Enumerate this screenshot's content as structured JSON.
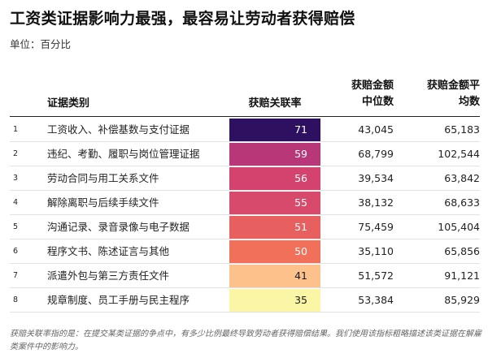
{
  "title": "工资类证据影响力最强，最容易让劳动者获得赔偿",
  "subtitle": "单位：百分比",
  "headers": {
    "category": "证据类别",
    "rate": "获赔关联率",
    "median_line1": "获赔金额",
    "median_line2": "中位数",
    "mean_line1": "获赔金额平",
    "mean_line2": "均数"
  },
  "note": "获赔关联率指的是：在提交某类证据的争点中，有多少比例最终导致劳动者获得赔偿结果。我们使用该指标粗略描述该类证据在解雇类案件中的影响力。",
  "colors": {
    "rate_cells": [
      "#2d1160",
      "#b73779",
      "#d3436e",
      "#d84a6b",
      "#e75f5f",
      "#f0705a",
      "#fdc28c",
      "#fbf5a6"
    ],
    "rate_text": [
      "#ffffff",
      "#ffffff",
      "#ffffff",
      "#ffffff",
      "#ffffff",
      "#ffffff",
      "#1a1a1a",
      "#1a1a1a"
    ]
  },
  "chart_data": {
    "type": "table",
    "columns": [
      "证据类别",
      "获赔关联率",
      "获赔金额中位数",
      "获赔金额平均数"
    ],
    "rows": [
      {
        "rank": "1",
        "category": "工资收入、补偿基数与支付证据",
        "rate": 71,
        "median": "43,045",
        "mean": "65,183"
      },
      {
        "rank": "2",
        "category": "违纪、考勤、履职与岗位管理证据",
        "rate": 59,
        "median": "68,799",
        "mean": "102,544"
      },
      {
        "rank": "3",
        "category": "劳动合同与用工关系文件",
        "rate": 56,
        "median": "39,534",
        "mean": "63,842"
      },
      {
        "rank": "4",
        "category": "解除离职与后续手续文件",
        "rate": 55,
        "median": "38,132",
        "mean": "68,633"
      },
      {
        "rank": "5",
        "category": "沟通记录、录音录像与电子数据",
        "rate": 51,
        "median": "75,459",
        "mean": "105,404"
      },
      {
        "rank": "6",
        "category": "程序文书、陈述证言与其他",
        "rate": 50,
        "median": "35,110",
        "mean": "65,856"
      },
      {
        "rank": "7",
        "category": "派遣外包与第三方责任文件",
        "rate": 41,
        "median": "51,572",
        "mean": "91,121"
      },
      {
        "rank": "8",
        "category": "规章制度、员工手册与民主程序",
        "rate": 35,
        "median": "53,384",
        "mean": "85,929"
      }
    ]
  }
}
